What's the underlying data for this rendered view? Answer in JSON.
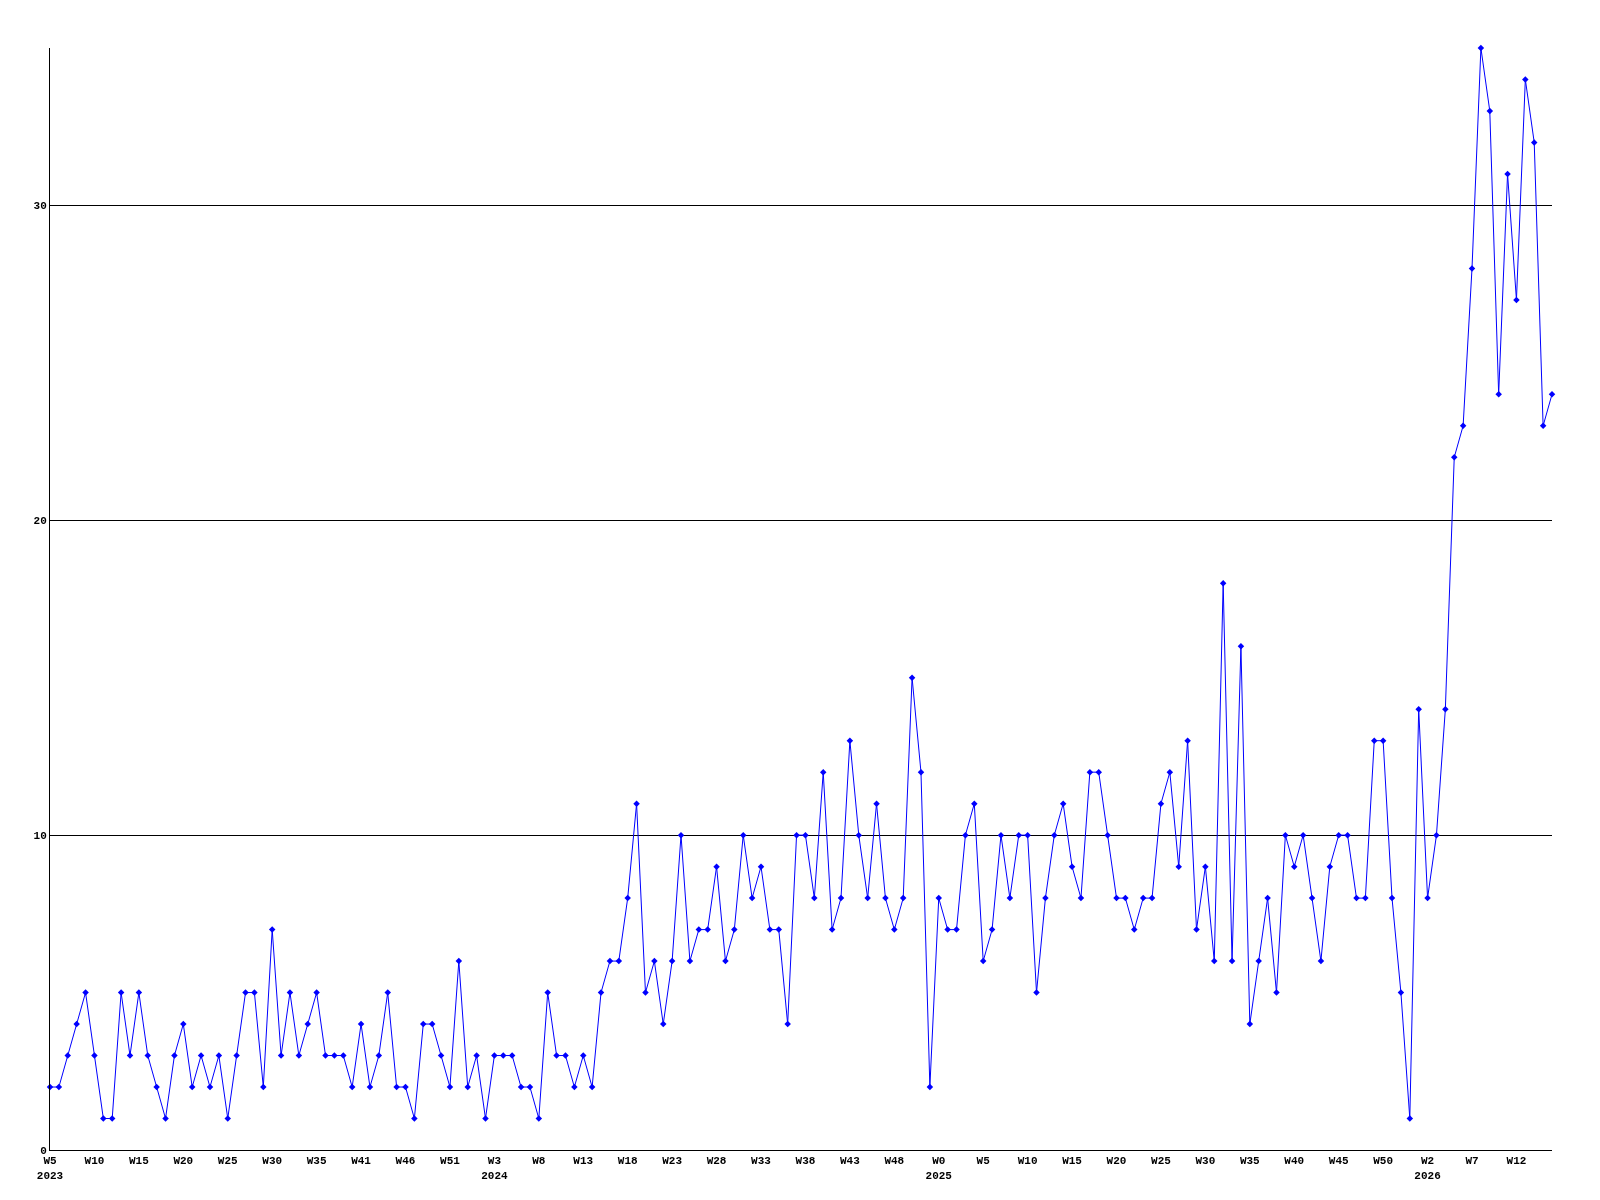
{
  "chart_data": {
    "type": "line",
    "categories": [
      "W5\n2023",
      null,
      null,
      null,
      null,
      "W10",
      null,
      null,
      null,
      null,
      "W15",
      null,
      null,
      null,
      null,
      "W20",
      null,
      null,
      null,
      null,
      "W25",
      null,
      null,
      null,
      null,
      "W30",
      null,
      null,
      null,
      null,
      "W35",
      null,
      null,
      null,
      null,
      "W41",
      null,
      null,
      null,
      null,
      "W46",
      null,
      null,
      null,
      null,
      "W51",
      null,
      null,
      null,
      null,
      "W3\n2024",
      null,
      null,
      null,
      null,
      "W8",
      null,
      null,
      null,
      null,
      "W13",
      null,
      null,
      null,
      null,
      "W18",
      null,
      null,
      null,
      null,
      "W23",
      null,
      null,
      null,
      null,
      "W28",
      null,
      null,
      null,
      null,
      "W33",
      null,
      null,
      null,
      null,
      "W38",
      null,
      null,
      null,
      null,
      "W43",
      null,
      null,
      null,
      null,
      "W48",
      null,
      null,
      null,
      null,
      "W0\n2025",
      null,
      null,
      null,
      null,
      "W5",
      null,
      null,
      null,
      null,
      "W10",
      null,
      null,
      null,
      null,
      "W15",
      null,
      null,
      null,
      null,
      "W20",
      null,
      null,
      null,
      null,
      "W25",
      null,
      null,
      null,
      null,
      "W30",
      null,
      null,
      null,
      null,
      "W35",
      null,
      null,
      null,
      null,
      "W40",
      null,
      null,
      null,
      null,
      "W45",
      null,
      null,
      null,
      null,
      "W50",
      null,
      null,
      null,
      null,
      "W2\n2026",
      null,
      null,
      null,
      null,
      "W7",
      null,
      null,
      null,
      null,
      "W12",
      null,
      null,
      null,
      null
    ],
    "series": [
      {
        "color": "#0000ff",
        "values": [
          2,
          2,
          3,
          4,
          5,
          3,
          1,
          1,
          5,
          3,
          5,
          3,
          2,
          1,
          3,
          4,
          2,
          3,
          2,
          3,
          1,
          3,
          5,
          5,
          2,
          7,
          3,
          5,
          3,
          4,
          5,
          3,
          3,
          3,
          2,
          4,
          2,
          3,
          5,
          2,
          2,
          1,
          4,
          4,
          3,
          2,
          6,
          2,
          3,
          1,
          3,
          3,
          3,
          2,
          2,
          1,
          5,
          3,
          3,
          2,
          3,
          2,
          5,
          6,
          6,
          8,
          11,
          5,
          6,
          4,
          6,
          10,
          6,
          7,
          7,
          9,
          6,
          7,
          10,
          8,
          9,
          7,
          7,
          4,
          10,
          10,
          8,
          12,
          7,
          8,
          13,
          10,
          8,
          11,
          8,
          7,
          8,
          15,
          12,
          2,
          8,
          7,
          7,
          10,
          11,
          6,
          7,
          10,
          8,
          10,
          10,
          5,
          8,
          10,
          11,
          9,
          8,
          12,
          12,
          10,
          8,
          8,
          7,
          8,
          8,
          11,
          12,
          9,
          13,
          7,
          9,
          6,
          18,
          6,
          16,
          4,
          6,
          8,
          5,
          10,
          9,
          10,
          8,
          6,
          9,
          10,
          10,
          8,
          8,
          13,
          13,
          8,
          5,
          1,
          14,
          8,
          10,
          14,
          22,
          23,
          28,
          35,
          33,
          24,
          31,
          27,
          34,
          32,
          23,
          24
        ]
      }
    ],
    "ylim": [
      0,
      35
    ],
    "yticks": [
      0,
      10,
      20,
      30
    ],
    "grid": "y",
    "marker": "diamond",
    "line_style": "solid"
  }
}
